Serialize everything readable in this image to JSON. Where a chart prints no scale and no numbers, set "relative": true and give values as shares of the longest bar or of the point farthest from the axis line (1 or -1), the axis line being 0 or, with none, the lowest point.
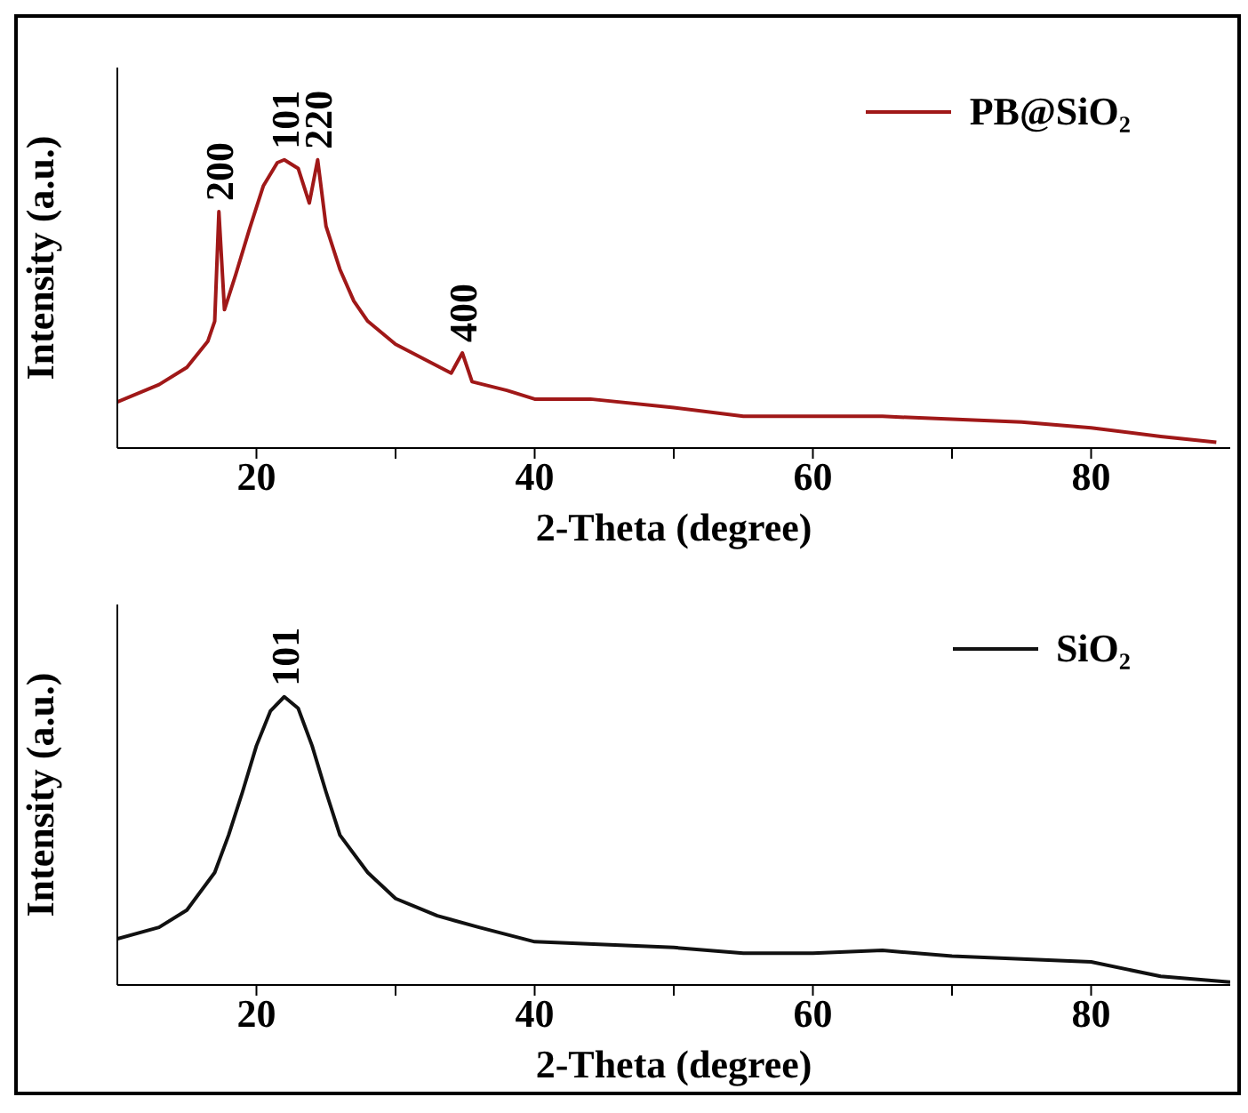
{
  "chart_data": [
    {
      "type": "line",
      "relative": true,
      "xlabel": "2-Theta (degree)",
      "ylabel": "Intensity (a.u.)",
      "xlim": [
        10,
        90
      ],
      "xticks": [
        20,
        {
          "value": 30,
          "label": null
        },
        40,
        {
          "value": 50,
          "label": null
        },
        60,
        {
          "value": 70,
          "label": null
        },
        80
      ],
      "legend": "top right",
      "marker": "none",
      "x": [
        10,
        13,
        15,
        16.5,
        17,
        17.3,
        17.7,
        18.5,
        19.5,
        20.5,
        21.5,
        22,
        23,
        23.8,
        24.4,
        25,
        26,
        27,
        28,
        30,
        32,
        34,
        34.8,
        35.5,
        38,
        40,
        44,
        50,
        55,
        60,
        65,
        70,
        75,
        80,
        85,
        89
      ],
      "series": [
        {
          "name": "PB@SiO₂",
          "color": "#a01818",
          "values": [
            0.16,
            0.22,
            0.28,
            0.37,
            0.44,
            0.82,
            0.48,
            0.6,
            0.76,
            0.91,
            0.99,
            1.0,
            0.97,
            0.85,
            1.0,
            0.77,
            0.62,
            0.51,
            0.44,
            0.36,
            0.31,
            0.26,
            0.33,
            0.23,
            0.2,
            0.17,
            0.17,
            0.14,
            0.11,
            0.11,
            0.11,
            0.1,
            0.09,
            0.07,
            0.04,
            0.02
          ]
        }
      ],
      "annotations": [
        {
          "text": "200",
          "x": 17.3,
          "y": 0.82
        },
        {
          "text": "101",
          "x": 22,
          "y": 1.0
        },
        {
          "text": "220",
          "x": 24.4,
          "y": 1.0
        },
        {
          "text": "400",
          "x": 34.8,
          "y": 0.33
        }
      ]
    },
    {
      "type": "line",
      "relative": true,
      "xlabel": "2-Theta (degree)",
      "ylabel": "Intensity (a.u.)",
      "xlim": [
        10,
        90
      ],
      "xticks": [
        20,
        {
          "value": 30,
          "label": null
        },
        40,
        {
          "value": 50,
          "label": null
        },
        60,
        {
          "value": 70,
          "label": null
        },
        80
      ],
      "legend": "top right",
      "marker": "none",
      "x": [
        10,
        13,
        15,
        17,
        18,
        19,
        20,
        21,
        22,
        23,
        24,
        25,
        26,
        28,
        30,
        33,
        36,
        40,
        45,
        50,
        55,
        60,
        65,
        70,
        75,
        80,
        85,
        90
      ],
      "series": [
        {
          "name": "SiO₂",
          "color": "#111111",
          "values": [
            0.16,
            0.2,
            0.26,
            0.39,
            0.52,
            0.67,
            0.83,
            0.95,
            1.0,
            0.96,
            0.83,
            0.67,
            0.52,
            0.39,
            0.3,
            0.24,
            0.2,
            0.15,
            0.14,
            0.13,
            0.11,
            0.11,
            0.12,
            0.1,
            0.09,
            0.08,
            0.03,
            0.01
          ]
        }
      ],
      "annotations": [
        {
          "text": "101",
          "x": 22,
          "y": 1.0
        }
      ]
    }
  ]
}
